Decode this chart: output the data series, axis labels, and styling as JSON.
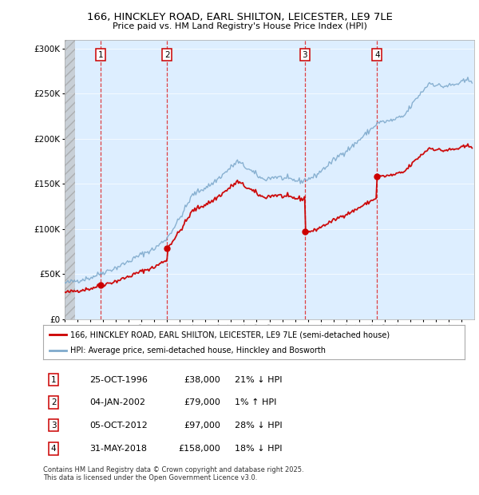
{
  "title_line1": "166, HINCKLEY ROAD, EARL SHILTON, LEICESTER, LE9 7LE",
  "title_line2": "Price paid vs. HM Land Registry's House Price Index (HPI)",
  "background_color": "#ffffff",
  "plot_bg_color": "#ddeeff",
  "red_line_color": "#cc0000",
  "blue_line_color": "#7faacc",
  "vline_color": "#ff4444",
  "sale_dates_year": [
    1996.814,
    2002.008,
    2012.756,
    2018.413
  ],
  "sale_prices": [
    38000,
    79000,
    97000,
    158000
  ],
  "sale_labels": [
    "1",
    "2",
    "3",
    "4"
  ],
  "table_rows": [
    [
      "1",
      "25-OCT-1996",
      "£38,000",
      "21% ↓ HPI"
    ],
    [
      "2",
      "04-JAN-2002",
      "£79,000",
      "1% ↑ HPI"
    ],
    [
      "3",
      "05-OCT-2012",
      "£97,000",
      "28% ↓ HPI"
    ],
    [
      "4",
      "31-MAY-2018",
      "£158,000",
      "18% ↓ HPI"
    ]
  ],
  "legend_line1": "166, HINCKLEY ROAD, EARL SHILTON, LEICESTER, LE9 7LE (semi-detached house)",
  "legend_line2": "HPI: Average price, semi-detached house, Hinckley and Bosworth",
  "footnote": "Contains HM Land Registry data © Crown copyright and database right 2025.\nThis data is licensed under the Open Government Licence v3.0.",
  "ylim": [
    0,
    310000
  ],
  "yticks": [
    0,
    50000,
    100000,
    150000,
    200000,
    250000,
    300000
  ],
  "ytick_labels": [
    "£0",
    "£50K",
    "£100K",
    "£150K",
    "£200K",
    "£250K",
    "£300K"
  ],
  "xmin": 1994.0,
  "xmax": 2026.0
}
